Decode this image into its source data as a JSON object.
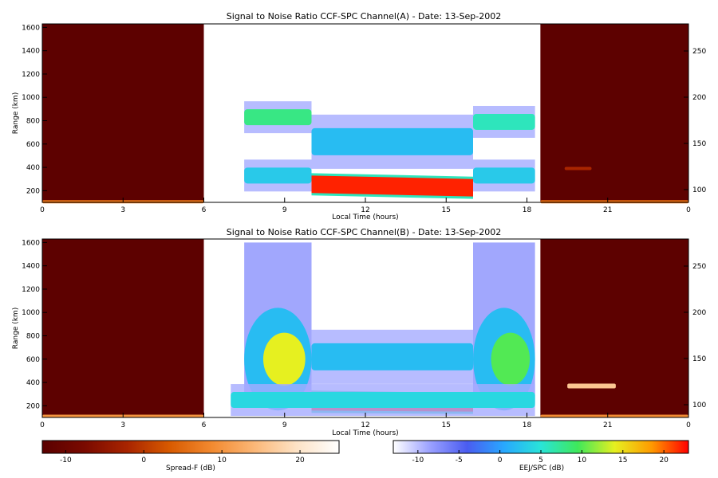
{
  "chart_data": [
    {
      "type": "heatmap",
      "title": "Signal to Noise Ratio CCF-SPC Channel(A) - Date: 13-Sep-2002",
      "xlabel": "Local Time (hours)",
      "ylabel": "Range (km)",
      "xlim": [
        0,
        24
      ],
      "ylim": [
        100,
        1630
      ],
      "x_ticks": [
        "0",
        "3",
        "6",
        "9",
        "12",
        "15",
        "18",
        "21",
        "0"
      ],
      "y_ticks": [
        200,
        400,
        600,
        800,
        1000,
        1200,
        1400,
        1600
      ],
      "right_ticks": [
        "100",
        "150",
        "200",
        "250"
      ],
      "spread_f_windows_hours": [
        [
          0,
          6
        ],
        [
          18.5,
          24
        ]
      ],
      "eej_window_hours": [
        6,
        18.5
      ],
      "features": [
        {
          "name": "spread-F bottom echo",
          "start_h": 0,
          "end_h": 6,
          "range_km": 105,
          "level_db": 6
        },
        {
          "name": "evening bottom echo",
          "start_h": 18.5,
          "end_h": 24,
          "range_km": 105,
          "level_db": 5
        },
        {
          "name": "weak echo",
          "start_h": 19.4,
          "end_h": 20.4,
          "range_km": 390,
          "level_db": -2
        },
        {
          "name": "EEJ core",
          "start_h": 10,
          "end_h": 16,
          "range_top_km": [
            330,
            300
          ],
          "range_bottom_km": [
            180,
            150
          ],
          "level_db": 22
        },
        {
          "name": "150 km echo",
          "start_h": 10,
          "end_h": 16,
          "range_km": 620,
          "level_db": 2
        },
        {
          "name": "morning F echo",
          "start_h": 7.5,
          "end_h": 10,
          "range_km": 830,
          "level_db": 8
        },
        {
          "name": "evening F echo",
          "start_h": 16,
          "end_h": 18.3,
          "range_km": 790,
          "level_db": 6
        },
        {
          "name": "low band morning",
          "start_h": 7.5,
          "end_h": 10,
          "range_km": 330,
          "level_db": 3
        },
        {
          "name": "low band evening",
          "start_h": 16,
          "end_h": 18.3,
          "range_km": 330,
          "level_db": 3
        }
      ]
    },
    {
      "type": "heatmap",
      "title": "Signal to Noise Ratio CCF-SPC Channel(B) - Date: 13-Sep-2002",
      "xlabel": "Local Time (hours)",
      "ylabel": "Range (km)",
      "xlim": [
        0,
        24
      ],
      "ylim": [
        100,
        1630
      ],
      "x_ticks": [
        "0",
        "3",
        "6",
        "9",
        "12",
        "15",
        "18",
        "21",
        "0"
      ],
      "y_ticks": [
        200,
        400,
        600,
        800,
        1000,
        1200,
        1400,
        1600
      ],
      "right_ticks": [
        "100",
        "150",
        "200",
        "250"
      ],
      "spread_f_windows_hours": [
        [
          0,
          6
        ],
        [
          18.5,
          24
        ]
      ],
      "eej_window_hours": [
        6,
        18.5
      ],
      "features": [
        {
          "name": "spread-F bottom echo",
          "start_h": 0,
          "end_h": 6,
          "range_km": 110,
          "level_db": 10
        },
        {
          "name": "evening bottom echo",
          "start_h": 18.5,
          "end_h": 24,
          "range_km": 110,
          "level_db": 9
        },
        {
          "name": "echo streak",
          "start_h": 19.5,
          "end_h": 21.3,
          "range_km": 370,
          "level_db": 16
        },
        {
          "name": "EEJ core",
          "start_h": 10,
          "end_h": 16,
          "range_top_km": [
            310,
            290
          ],
          "range_bottom_km": [
            160,
            150
          ],
          "level_db": 22
        },
        {
          "name": "150 km echo",
          "start_h": 10,
          "end_h": 16,
          "range_km": 620,
          "level_db": 2
        },
        {
          "name": "morning plume",
          "start_h": 7.5,
          "end_h": 10,
          "range_km": 600,
          "level_db": 14
        },
        {
          "name": "evening plume",
          "start_h": 16,
          "end_h": 18.3,
          "range_km": 600,
          "level_db": 10
        },
        {
          "name": "low band",
          "start_h": 7,
          "end_h": 18.3,
          "range_km": 250,
          "level_db": 4
        }
      ]
    }
  ],
  "colorbars": [
    {
      "label": "Spread-F (dB)",
      "min": -13,
      "max": 25,
      "ticks": [
        -10,
        0,
        10,
        20
      ],
      "palette": [
        "#5a0000",
        "#7a0a00",
        "#a82400",
        "#d85a00",
        "#f28a30",
        "#fbb777",
        "#fde3c6",
        "#ffffff"
      ]
    },
    {
      "label": "EEJ/SPC (dB)",
      "min": -13,
      "max": 23,
      "ticks": [
        -10,
        -5,
        0,
        5,
        10,
        15,
        20
      ],
      "palette": [
        "#ffffff",
        "#9aa0ff",
        "#4a5cf0",
        "#28a8ff",
        "#29e4d8",
        "#3fe85a",
        "#e6f020",
        "#ff9a00",
        "#ff0000"
      ]
    }
  ]
}
